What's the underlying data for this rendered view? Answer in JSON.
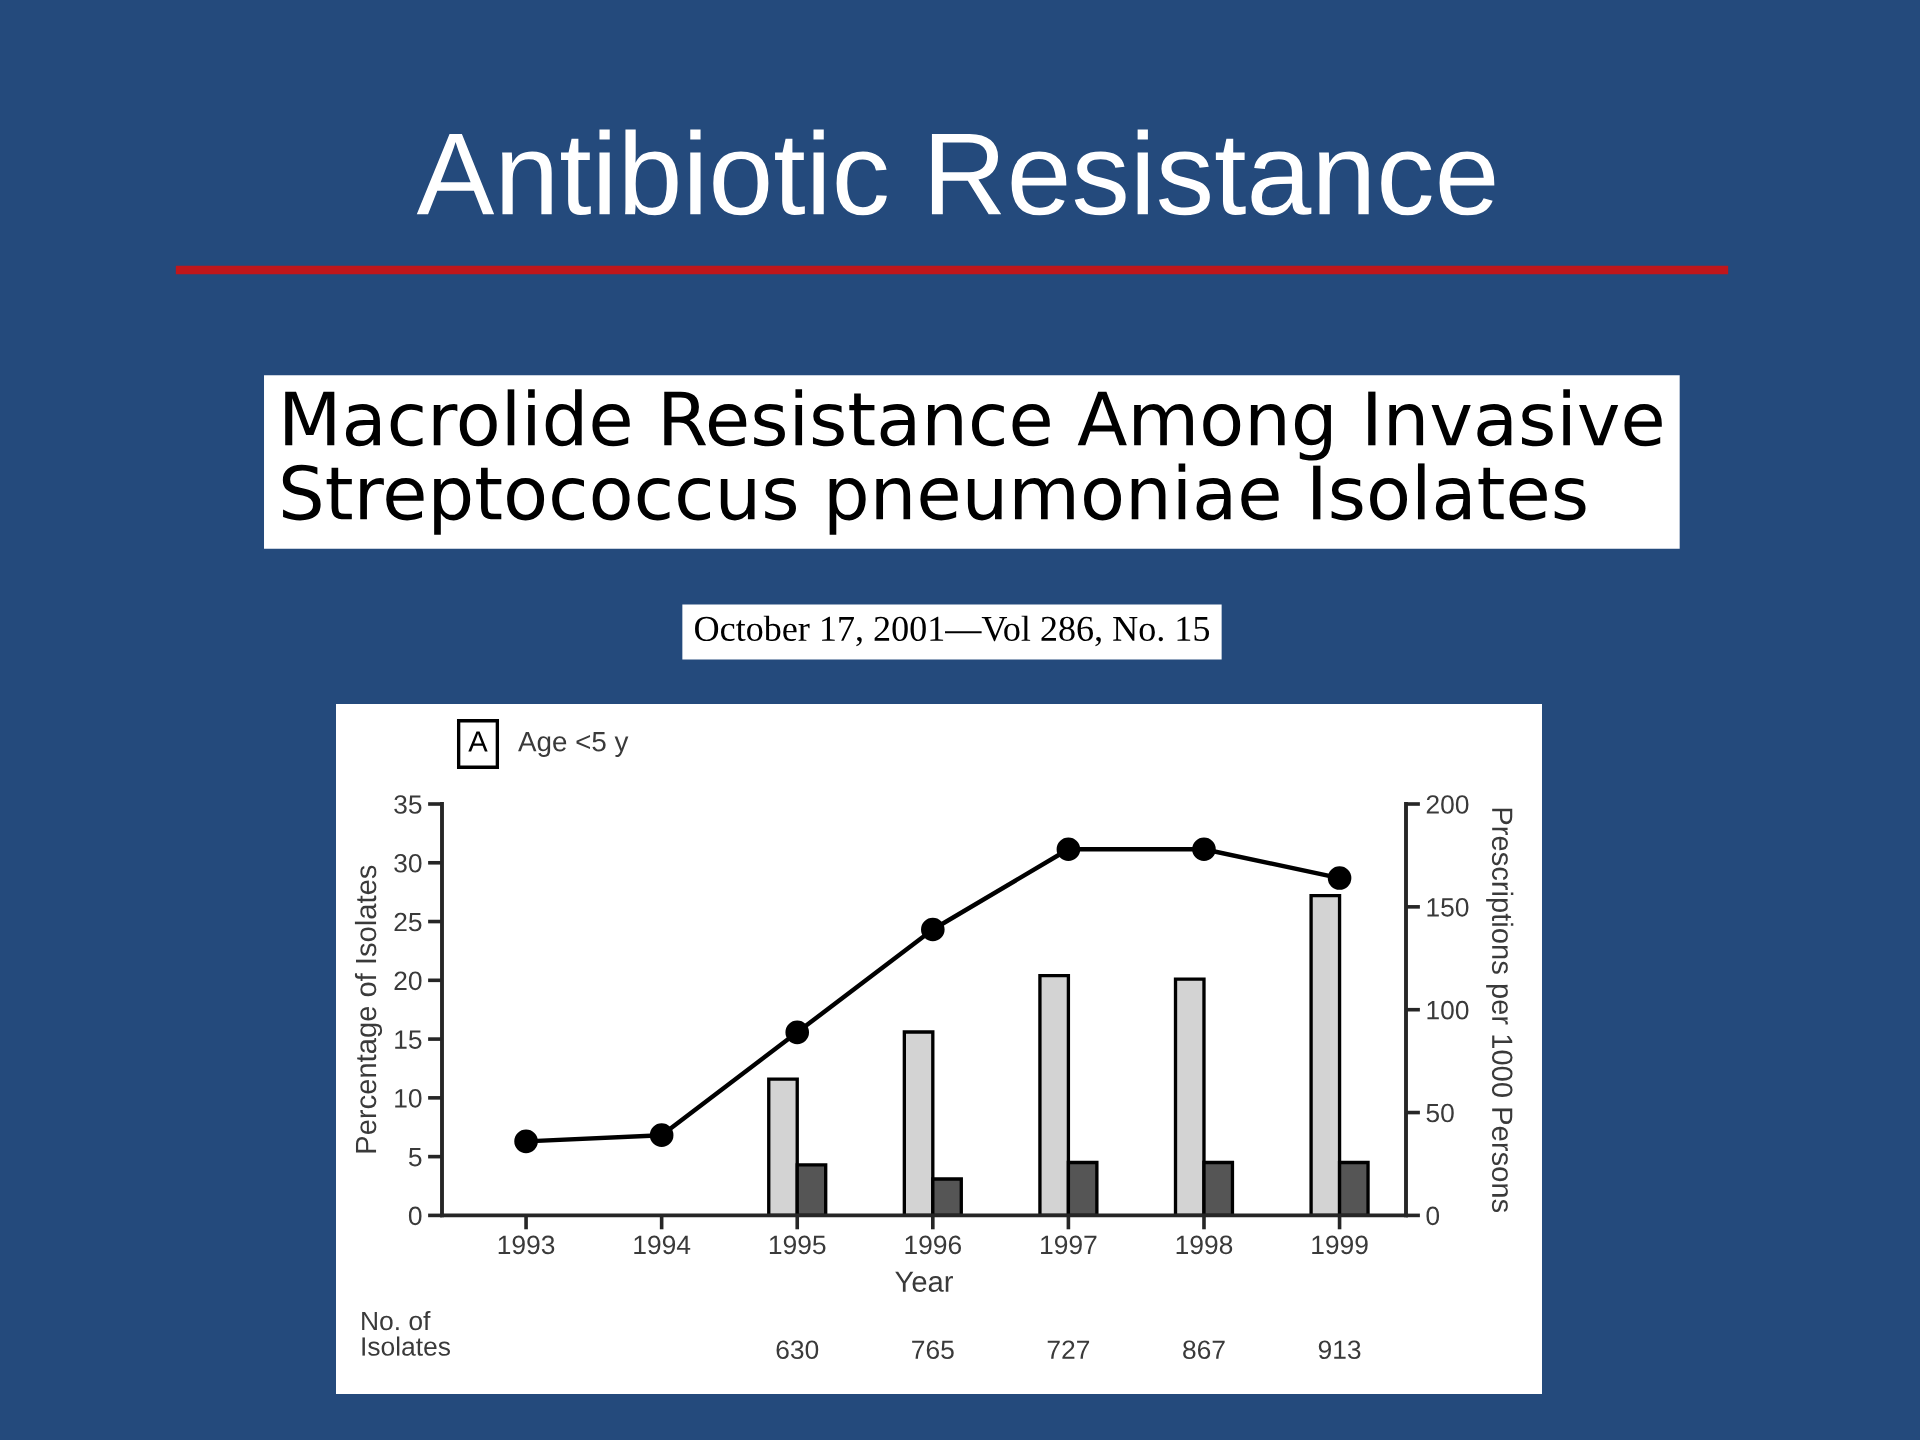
{
  "chart_data": {
    "type": "bar",
    "title": "Antibiotic Resistance",
    "subtitle": "Macrolide Resistance Among Invasive\nStreptococcus pneumoniae Isolates",
    "xlabel": "Year",
    "ylabel": "Percentage of Isolates",
    "y2label": "Prescriptions per 1000 Persons",
    "categories": [
      "1993",
      "1994",
      "1995",
      "1996",
      "1997",
      "1998",
      "1999"
    ],
    "series": [
      {
        "color": "#d3d3d3",
        "values": [
          null,
          null,
          11.6,
          15.6,
          20.4,
          20.1,
          27.2
        ]
      },
      {
        "color": "#555555",
        "values": [
          null,
          null,
          4.3,
          3.1,
          4.5,
          4.5,
          4.5
        ]
      },
      {
        "type": "line",
        "axis": "y2",
        "color": "#000000",
        "marker": "circle",
        "values": [
          36,
          39,
          89,
          139,
          178,
          178,
          164
        ]
      }
    ],
    "ylim": [
      0,
      35
    ],
    "yticks": [
      0,
      5,
      10,
      15,
      20,
      25,
      30,
      35
    ],
    "y2lim": [
      0,
      200
    ],
    "y2ticks": [
      0,
      50,
      100,
      150,
      200
    ],
    "annotations": [
      "A",
      "Age <5 y",
      "October 17, 2001—Vol 286, No. 15",
      "No. of\nIsolates",
      "630",
      "765",
      "727",
      "867",
      "913"
    ]
  }
}
